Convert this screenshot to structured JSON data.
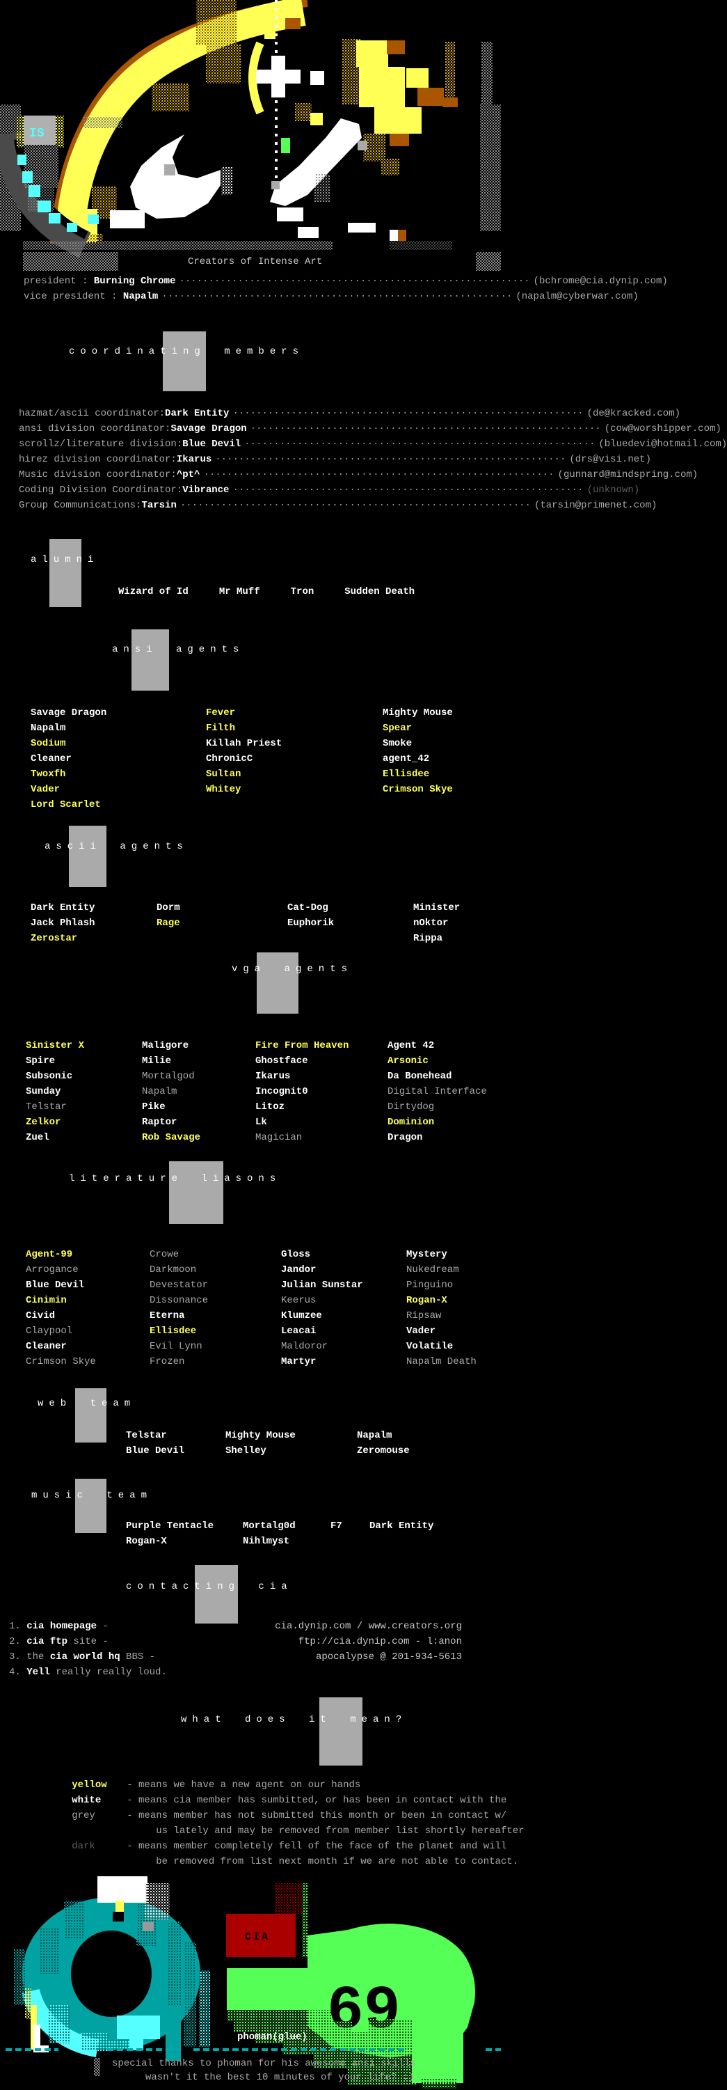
{
  "tagline": "Creators of Intense Art",
  "leader_dots": "····························································",
  "executives": [
    {
      "label": "president : ",
      "name": "Burning Chrome",
      "email": "(bchrome@cia.dynip.com)"
    },
    {
      "label": "vice president : ",
      "name": "Napalm",
      "email": "(napalm@cyberwar.com)"
    }
  ],
  "sections": {
    "coordinating": {
      "title": "coordinating members"
    },
    "alumni": {
      "title": "alumni"
    },
    "ansi": {
      "title": "ansi agents"
    },
    "ascii": {
      "title": "ascii agents"
    },
    "vga": {
      "title": "vga agents"
    },
    "literature": {
      "title": "literature liasons"
    },
    "web": {
      "title": "web team"
    },
    "music": {
      "title": "music team"
    },
    "contacting": {
      "title": "contacting cia"
    },
    "meaning": {
      "title": "what does it mean?"
    }
  },
  "coordinators": [
    {
      "label": "hazmat/ascii coordinator:",
      "name": "Dark Entity",
      "email": "(de@kracked.com)"
    },
    {
      "label": "ansi division coordinator:",
      "name": "Savage Dragon",
      "email": "(cow@worshipper.com)"
    },
    {
      "label": "scrollz/literature division:",
      "name": "Blue Devil",
      "email": "(bluedevi@hotmail.com)"
    },
    {
      "label": "hirez division coordinator:",
      "name": "Ikarus",
      "email": "(drs@visi.net)"
    },
    {
      "label": "Music division coordinator:",
      "name": "^pt^",
      "email": "(gunnard@mindspring.com)"
    },
    {
      "label": "Coding Division Coordinator:",
      "name": "Vibrance",
      "email": "(unknown)",
      "ec": "dark"
    },
    {
      "label": "Group Communications:",
      "name": "Tarsin",
      "email": "(tarsin@primenet.com)"
    }
  ],
  "alumni": [
    "Wizard of Id",
    "Mr Muff",
    "Tron",
    "Sudden Death"
  ],
  "ansi_agents": {
    "col1": [
      {
        "t": "Savage Dragon",
        "c": "white"
      },
      {
        "t": "Napalm",
        "c": "white"
      },
      {
        "t": "Sodium",
        "c": "yellow"
      },
      {
        "t": "Cleaner",
        "c": "white"
      },
      {
        "t": "Twoxfh",
        "c": "yellow"
      },
      {
        "t": "Vader",
        "c": "yellow"
      },
      {
        "t": "Lord Scarlet",
        "c": "yellow"
      }
    ],
    "col2": [
      {
        "t": "Fever",
        "c": "yellow"
      },
      {
        "t": "Filth",
        "c": "yellow"
      },
      {
        "t": "Killah Priest",
        "c": "white"
      },
      {
        "t": "ChronicC",
        "c": "white"
      },
      {
        "t": "Sultan",
        "c": "yellow"
      },
      {
        "t": "Whitey",
        "c": "yellow"
      }
    ],
    "col3": [
      {
        "t": "Mighty Mouse",
        "c": "white"
      },
      {
        "t": "Spear",
        "c": "yellow"
      },
      {
        "t": "Smoke",
        "c": "white"
      },
      {
        "t": "agent_42",
        "c": "white"
      },
      {
        "t": "Ellisdee",
        "c": "yellow"
      },
      {
        "t": "Crimson Skye",
        "c": "yellow"
      }
    ]
  },
  "ascii_agents": {
    "col1": [
      {
        "t": "Dark Entity",
        "c": "white"
      },
      {
        "t": "Jack Phlash",
        "c": "white"
      },
      {
        "t": "Zerostar",
        "c": "yellow"
      }
    ],
    "col2": [
      {
        "t": "Dorm",
        "c": "white"
      },
      {
        "t": "Rage",
        "c": "yellow"
      }
    ],
    "col3": [
      {
        "t": "Cat-Dog",
        "c": "white"
      },
      {
        "t": "Euphorik",
        "c": "white"
      }
    ],
    "col4": [
      {
        "t": "Minister",
        "c": "white"
      },
      {
        "t": "nOktor",
        "c": "white"
      },
      {
        "t": "Rippa",
        "c": "white"
      }
    ]
  },
  "vga_agents": {
    "col1": [
      {
        "t": "Sinister X",
        "c": "yellow"
      },
      {
        "t": "Spire",
        "c": "white"
      },
      {
        "t": "Subsonic",
        "c": "white"
      },
      {
        "t": "Sunday",
        "c": "white"
      },
      {
        "t": "Telstar",
        "c": "grey"
      },
      {
        "t": "Zelkor",
        "c": "yellow"
      },
      {
        "t": "Zuel",
        "c": "white"
      }
    ],
    "col2": [
      {
        "t": "Maligore",
        "c": "white"
      },
      {
        "t": "Milie",
        "c": "white"
      },
      {
        "t": "Mortalgod",
        "c": "grey"
      },
      {
        "t": "Napalm",
        "c": "grey"
      },
      {
        "t": "Pike",
        "c": "white"
      },
      {
        "t": "Raptor",
        "c": "white"
      },
      {
        "t": "Rob Savage",
        "c": "yellow"
      }
    ],
    "col3": [
      {
        "t": "Fire From Heaven",
        "c": "yellow"
      },
      {
        "t": "Ghostface",
        "c": "white"
      },
      {
        "t": "Ikarus",
        "c": "white"
      },
      {
        "t": "Incognit0",
        "c": "white"
      },
      {
        "t": "Litoz",
        "c": "white"
      },
      {
        "t": "Lk",
        "c": "white"
      },
      {
        "t": "Magician",
        "c": "grey"
      }
    ],
    "col4": [
      {
        "t": "Agent 42",
        "c": "white"
      },
      {
        "t": "Arsonic",
        "c": "yellow"
      },
      {
        "t": "Da Bonehead",
        "c": "white"
      },
      {
        "t": "Digital Interface",
        "c": "grey"
      },
      {
        "t": "Dirtydog",
        "c": "grey"
      },
      {
        "t": "Dominion",
        "c": "yellow"
      },
      {
        "t": "Dragon",
        "c": "white"
      }
    ]
  },
  "lit_liasons": {
    "col1": [
      {
        "t": "Agent-99",
        "c": "yellow"
      },
      {
        "t": "Arrogance",
        "c": "grey"
      },
      {
        "t": "Blue Devil",
        "c": "white"
      },
      {
        "t": "Cinimin",
        "c": "yellow"
      },
      {
        "t": "Civid",
        "c": "white"
      },
      {
        "t": "Claypool",
        "c": "grey"
      },
      {
        "t": "Cleaner",
        "c": "white"
      },
      {
        "t": "Crimson Skye",
        "c": "grey"
      }
    ],
    "col2": [
      {
        "t": "Crowe",
        "c": "grey"
      },
      {
        "t": "Darkmoon",
        "c": "grey"
      },
      {
        "t": "Devestator",
        "c": "grey"
      },
      {
        "t": "Dissonance",
        "c": "grey"
      },
      {
        "t": "Eterna",
        "c": "white"
      },
      {
        "t": "Ellisdee",
        "c": "yellow"
      },
      {
        "t": "Evil Lynn",
        "c": "grey"
      },
      {
        "t": "Frozen",
        "c": "grey"
      }
    ],
    "col3": [
      {
        "t": "Gloss",
        "c": "white"
      },
      {
        "t": "Jandor",
        "c": "white"
      },
      {
        "t": "Julian Sunstar",
        "c": "white"
      },
      {
        "t": "Keerus",
        "c": "grey"
      },
      {
        "t": "Klumzee",
        "c": "white"
      },
      {
        "t": "Leacai",
        "c": "white"
      },
      {
        "t": "Maldoror",
        "c": "grey"
      },
      {
        "t": "Martyr",
        "c": "white"
      }
    ],
    "col4": [
      {
        "t": "Mystery",
        "c": "white"
      },
      {
        "t": "Nukedream",
        "c": "grey"
      },
      {
        "t": "Pinguino",
        "c": "grey"
      },
      {
        "t": "Rogan-X",
        "c": "yellow"
      },
      {
        "t": "Ripsaw",
        "c": "grey"
      },
      {
        "t": "Vader",
        "c": "white"
      },
      {
        "t": "Volatile",
        "c": "white"
      },
      {
        "t": "Napalm Death",
        "c": "grey"
      }
    ]
  },
  "web_team": {
    "col1": [
      {
        "t": "Telstar",
        "c": "white"
      },
      {
        "t": "Blue Devil",
        "c": "white"
      }
    ],
    "col2": [
      {
        "t": "Mighty Mouse",
        "c": "white"
      },
      {
        "t": "Shelley",
        "c": "white"
      }
    ],
    "col3": [
      {
        "t": "Napalm",
        "c": "white"
      },
      {
        "t": "Zeromouse",
        "c": "white"
      }
    ]
  },
  "music_team": {
    "col1": [
      {
        "t": "Purple Tentacle",
        "c": "white"
      },
      {
        "t": "Rogan-X",
        "c": "white"
      }
    ],
    "col2": [
      {
        "t": "Mortalg0d",
        "c": "white"
      },
      {
        "t": "Nihlmyst",
        "c": "white"
      }
    ],
    "col3": [
      {
        "t": "F7",
        "c": "white"
      }
    ],
    "col4": [
      {
        "t": "Dark Entity",
        "c": "white"
      }
    ]
  },
  "contact": {
    "items": [
      {
        "pre": "1. ",
        "strong": "cia homepage",
        "post": " -",
        "right": "cia.dynip.com / www.creators.org"
      },
      {
        "pre": "2. ",
        "strong": "cia ftp",
        "post": " site -",
        "right": "ftp://cia.dynip.com - l:anon"
      },
      {
        "pre": "3. the ",
        "strong": "cia world hq",
        "post": " BBS -",
        "right": "apocalypse @ 201-934-5613"
      },
      {
        "pre": "4. ",
        "strong": "Yell",
        "post": " really really loud.",
        "right": ""
      }
    ]
  },
  "legend": {
    "entries": [
      {
        "key": "yellow",
        "kc": "yellow",
        "text": "- means we have a new agent on our hands"
      },
      {
        "key": "white",
        "kc": "white",
        "text": "- means cia member has sumbitted, or has been in contact with the"
      },
      {
        "key": "grey",
        "kc": "grey",
        "text": "- means member has not submitted this month or been in contact w/"
      },
      {
        "key": "",
        "kc": "grey",
        "text": "     us lately and may be removed from member list shortly hereafter"
      },
      {
        "key": "dark",
        "kc": "dark",
        "text": "- means member completely fell of the face of the planet and will"
      },
      {
        "key": "",
        "kc": "grey",
        "text": "     be removed from list next month if we are not able to contact."
      }
    ]
  },
  "footer": {
    "credit": "phoman(glue)",
    "thanks1": "special thanks to phoman for his awesome ansi skills",
    "thanks2": "wasn't it the best 10 minutes of your life? :)"
  },
  "art": {
    "cia_label": "CIA",
    "is_label": "IS",
    "sixtynine": "69"
  }
}
